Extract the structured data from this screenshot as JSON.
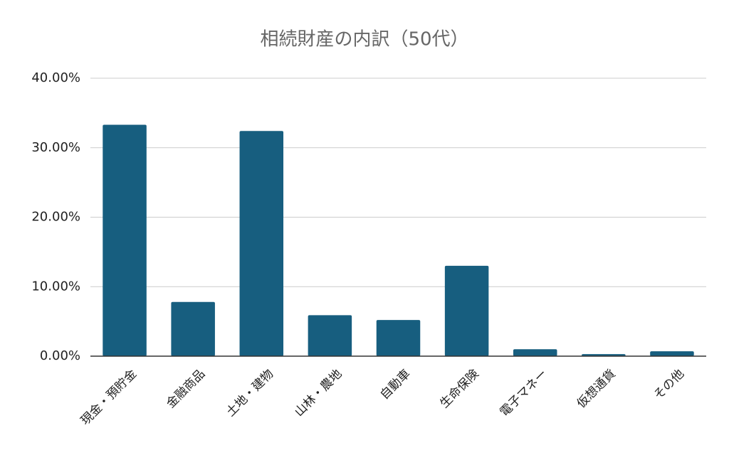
{
  "chart_data": {
    "type": "bar",
    "title": "相続財産の内訳（50代）",
    "categories": [
      "現金・預貯金",
      "金融商品",
      "土地・建物",
      "山林・農地",
      "自動車",
      "生命保険",
      "電子マネー",
      "仮想通貨",
      "その他"
    ],
    "values": [
      33.3,
      7.8,
      32.4,
      5.9,
      5.2,
      13.0,
      1.0,
      0.3,
      0.7
    ],
    "color": "#175e7f",
    "ylim": [
      0,
      40
    ],
    "yticks": [
      {
        "value": 0,
        "label": "0.00%"
      },
      {
        "value": 10,
        "label": "10.00%"
      },
      {
        "value": 20,
        "label": "20.00%"
      },
      {
        "value": 30,
        "label": "30.00%"
      },
      {
        "value": 40,
        "label": "40.00%"
      }
    ],
    "grid": true
  }
}
